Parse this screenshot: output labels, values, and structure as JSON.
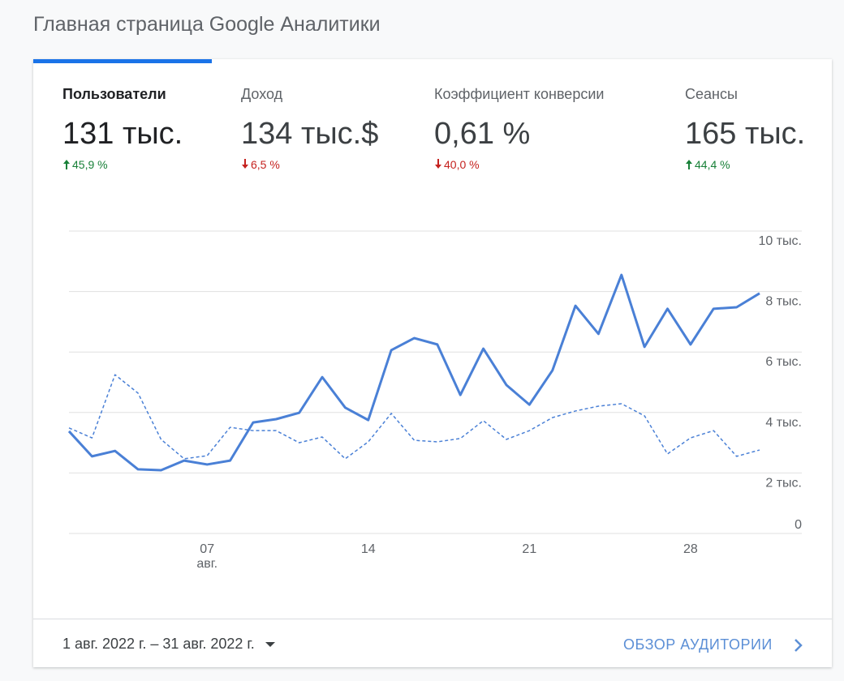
{
  "header": {
    "title": "Главная страница Google Аналитики"
  },
  "metrics": [
    {
      "label": "Пользователи",
      "value": "131 тыс.",
      "change": "45,9 %",
      "direction": "up",
      "active": true
    },
    {
      "label": "Доход",
      "value": "134 тыс.$",
      "change": "6,5 %",
      "direction": "down",
      "active": false
    },
    {
      "label": "Коэффициент конверсии",
      "value": "0,61 %",
      "change": "40,0 %",
      "direction": "down",
      "active": false
    },
    {
      "label": "Сеансы",
      "value": "165 тыс.",
      "change": "44,4 %",
      "direction": "up",
      "active": false
    }
  ],
  "chart_data": {
    "type": "line",
    "x": [
      1,
      2,
      3,
      4,
      5,
      6,
      7,
      8,
      9,
      10,
      11,
      12,
      13,
      14,
      15,
      16,
      17,
      18,
      19,
      20,
      21,
      22,
      23,
      24,
      25,
      26,
      27,
      28,
      29,
      30,
      31
    ],
    "xlim": [
      1,
      31
    ],
    "xticks": [
      {
        "value": 7,
        "label": "07"
      },
      14,
      21,
      28
    ],
    "x_month_label": "авг.",
    "ylim": [
      0,
      10000
    ],
    "yticks": [
      0,
      {
        "value": 2000,
        "label": "2 тыс."
      },
      {
        "value": 4000,
        "label": "4 тыс."
      },
      {
        "value": 6000,
        "label": "6 тыс."
      },
      {
        "value": 8000,
        "label": "8 тыс."
      },
      {
        "value": 10000,
        "label": "10 тыс."
      }
    ],
    "grid": true,
    "series": [
      {
        "color": "#4a80d6",
        "style": "solid",
        "values": [
          3380,
          2550,
          2730,
          2120,
          2090,
          2410,
          2280,
          2410,
          3670,
          3780,
          3990,
          5170,
          4160,
          3750,
          6060,
          6460,
          6250,
          4580,
          6110,
          4910,
          4260,
          5390,
          7530,
          6600,
          8550,
          6170,
          7430,
          6250,
          7430,
          7480,
          7940
        ]
      },
      {
        "color": "#4a80d6",
        "style": "dashed",
        "values": [
          3490,
          3160,
          5250,
          4640,
          3110,
          2470,
          2570,
          3510,
          3400,
          3400,
          3000,
          3190,
          2470,
          3030,
          3970,
          3080,
          3030,
          3140,
          3730,
          3110,
          3400,
          3830,
          4050,
          4210,
          4290,
          3890,
          2630,
          3160,
          3400,
          2550,
          2760
        ]
      }
    ]
  },
  "footer": {
    "date_range": "1 авг. 2022 г. – 31 авг. 2022 г.",
    "link": "ОБЗОР АУДИТОРИИ"
  }
}
